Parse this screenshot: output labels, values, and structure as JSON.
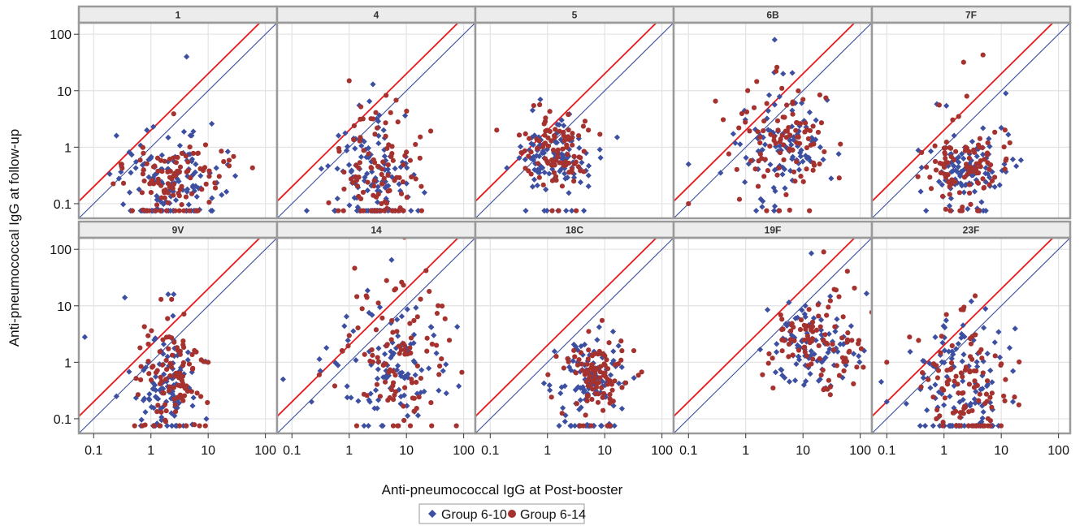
{
  "chart_data": {
    "type": "scatter",
    "layout": "panel-grid",
    "rows": 2,
    "cols": 5,
    "xscale": "log",
    "yscale": "log",
    "xlim": [
      0.055,
      160
    ],
    "ylim": [
      0.055,
      160
    ],
    "xlabel": "Anti-pneumococcal IgG at Post-booster",
    "ylabel": "Anti-pneumococcal IgG at follow-up",
    "x_ticks": [
      0.1,
      1,
      10,
      100
    ],
    "x_tick_labels": [
      "0.1",
      "1",
      "10",
      "100"
    ],
    "y_ticks": [
      0.1,
      1,
      10,
      100
    ],
    "y_tick_labels": [
      "0.1",
      "1",
      "10",
      "100"
    ],
    "grid": true,
    "legend_position": "bottom",
    "reference_lines": [
      {
        "kind": "identity",
        "factor": 1,
        "color": "#3d4fa0"
      },
      {
        "kind": "two-fold",
        "factor": 2,
        "color": "#e8191c"
      }
    ],
    "series": [
      {
        "name": "Group 6-10",
        "color": "#3d4fa0",
        "marker": "diamond"
      },
      {
        "name": "Group 6-14",
        "color": "#a5322e",
        "marker": "circle"
      }
    ],
    "panels": [
      {
        "label": "1",
        "lloq": 0.075,
        "g1": {
          "cx": 2,
          "cy": 0.3,
          "sx": 0.45,
          "sy": 0.35,
          "floor": 25,
          "n": 95,
          "extra": [
            [
              4.2,
              40
            ],
            [
              1.1,
              2.3
            ],
            [
              0.85,
              2
            ],
            [
              0.25,
              1.6
            ],
            [
              5.5,
              1.9
            ],
            [
              0.55,
              0.55
            ]
          ]
        },
        "g2": {
          "cx": 2.4,
          "cy": 0.28,
          "sx": 0.45,
          "sy": 0.3,
          "floor": 10,
          "n": 95,
          "extra": [
            [
              2.5,
              3.9
            ],
            [
              17,
              0.85
            ],
            [
              9,
              1.1
            ],
            [
              0.3,
              0.5
            ]
          ]
        }
      },
      {
        "label": "4",
        "lloq": 0.075,
        "g1": {
          "cx": 2.5,
          "cy": 0.3,
          "sx": 0.35,
          "sy": 0.45,
          "floor": 25,
          "n": 95,
          "extra": [
            [
              2.6,
              13
            ],
            [
              1.5,
              5.5
            ],
            [
              0.65,
              1.6
            ],
            [
              1.3,
              1.4
            ],
            [
              4,
              2
            ]
          ]
        },
        "g2": {
          "cx": 3.2,
          "cy": 0.35,
          "sx": 0.35,
          "sy": 0.5,
          "floor": 10,
          "n": 95,
          "extra": [
            [
              1,
              15
            ],
            [
              1.6,
              5.2
            ],
            [
              6.6,
              6.8
            ],
            [
              2.4,
              3.2
            ]
          ]
        }
      },
      {
        "label": "5",
        "lloq": 0.075,
        "g1": {
          "cx": 1.4,
          "cy": 0.7,
          "sx": 0.35,
          "sy": 0.3,
          "floor": 6,
          "n": 95,
          "extra": [
            [
              0.75,
              7
            ],
            [
              0.55,
              4.5
            ],
            [
              0.55,
              0.2
            ],
            [
              1.6,
              2.5
            ]
          ]
        },
        "g2": {
          "cx": 1.5,
          "cy": 0.8,
          "sx": 0.35,
          "sy": 0.3,
          "floor": 3,
          "n": 95,
          "extra": [
            [
              1.1,
              4.3
            ],
            [
              2.3,
              3.8
            ],
            [
              3.5,
              1.6
            ],
            [
              0.35,
              0.8
            ]
          ]
        }
      },
      {
        "label": "6B",
        "lloq": 0.075,
        "g1": {
          "cx": 4.5,
          "cy": 1,
          "sx": 0.4,
          "sy": 0.45,
          "floor": 3,
          "n": 95,
          "extra": [
            [
              3.2,
              80
            ],
            [
              4.5,
              20
            ],
            [
              0.1,
              0.5
            ],
            [
              20,
              1
            ]
          ]
        },
        "g2": {
          "cx": 4.5,
          "cy": 1.2,
          "sx": 0.4,
          "sy": 0.45,
          "floor": 3,
          "n": 95,
          "extra": [
            [
              3.5,
              26
            ],
            [
              1.4,
              5
            ],
            [
              0.1,
              0.1
            ],
            [
              10,
              7
            ]
          ]
        }
      },
      {
        "label": "7F",
        "lloq": 0.075,
        "g1": {
          "cx": 2.4,
          "cy": 0.38,
          "sx": 0.35,
          "sy": 0.3,
          "floor": 5,
          "n": 95,
          "extra": [
            [
              0.75,
              5.8
            ],
            [
              1.1,
              5.4
            ],
            [
              12,
              9
            ],
            [
              10,
              2.2
            ],
            [
              1.5,
              1.6
            ]
          ]
        },
        "g2": {
          "cx": 2.5,
          "cy": 0.42,
          "sx": 0.35,
          "sy": 0.3,
          "floor": 4,
          "n": 95,
          "extra": [
            [
              4.8,
              43
            ],
            [
              2.2,
              32
            ],
            [
              2.5,
              8
            ],
            [
              1.8,
              3.5
            ],
            [
              0.35,
              0.3
            ]
          ]
        }
      },
      {
        "label": "9V",
        "lloq": 0.075,
        "g1": {
          "cx": 2,
          "cy": 0.45,
          "sx": 0.3,
          "sy": 0.4,
          "floor": 10,
          "n": 95,
          "extra": [
            [
              0.07,
              2.8
            ],
            [
              0.35,
              14
            ],
            [
              2.5,
              16
            ],
            [
              2,
              16
            ],
            [
              0.25,
              0.25
            ]
          ]
        },
        "g2": {
          "cx": 2.4,
          "cy": 0.5,
          "sx": 0.3,
          "sy": 0.42,
          "floor": 8,
          "n": 95,
          "extra": [
            [
              2.3,
              13
            ],
            [
              1.5,
              13
            ],
            [
              10,
              1
            ],
            [
              0.9,
              2.1
            ]
          ]
        }
      },
      {
        "label": "14",
        "lloq": 0.075,
        "g1": {
          "cx": 5.5,
          "cy": 0.9,
          "sx": 0.5,
          "sy": 0.55,
          "floor": 4,
          "n": 95,
          "extra": [
            [
              0.07,
              0.5
            ],
            [
              5.5,
              65
            ],
            [
              0.22,
              0.2
            ],
            [
              30,
              3
            ],
            [
              0.4,
              1.8
            ]
          ]
        },
        "g2": {
          "cx": 6,
          "cy": 1.1,
          "sx": 0.5,
          "sy": 0.55,
          "floor": 4,
          "n": 95,
          "extra": [
            [
              22,
              42
            ],
            [
              4.5,
              28
            ],
            [
              6.5,
              20
            ],
            [
              0.3,
              0.6
            ],
            [
              25,
              18
            ]
          ]
        }
      },
      {
        "label": "18C",
        "lloq": 0.075,
        "g1": {
          "cx": 5.5,
          "cy": 0.5,
          "sx": 0.3,
          "sy": 0.32,
          "floor": 20,
          "n": 95,
          "extra": [
            [
              1.1,
              0.32
            ],
            [
              14,
              3.5
            ],
            [
              8,
              4.2
            ]
          ]
        },
        "g2": {
          "cx": 6.5,
          "cy": 0.6,
          "sx": 0.3,
          "sy": 0.32,
          "floor": 5,
          "n": 95,
          "extra": [
            [
              9,
              5.5
            ],
            [
              20,
              1.6
            ],
            [
              5,
              0.25
            ]
          ]
        }
      },
      {
        "label": "19F",
        "lloq": 0.075,
        "g1": {
          "cx": 16,
          "cy": 1.8,
          "sx": 0.38,
          "sy": 0.4,
          "floor": 0,
          "n": 95,
          "extra": [
            [
              2.4,
              8.5
            ],
            [
              14,
              85
            ],
            [
              11,
              10
            ],
            [
              5,
              2.5
            ]
          ]
        },
        "g2": {
          "cx": 20,
          "cy": 2.2,
          "sx": 0.38,
          "sy": 0.4,
          "floor": 0,
          "n": 95,
          "extra": [
            [
              23,
              90
            ],
            [
              9,
              3.8
            ],
            [
              3,
              0.35
            ],
            [
              60,
              2.5
            ]
          ]
        }
      },
      {
        "label": "23F",
        "lloq": 0.075,
        "g1": {
          "cx": 2,
          "cy": 0.45,
          "sx": 0.4,
          "sy": 0.5,
          "floor": 25,
          "n": 95,
          "extra": [
            [
              0.08,
              0.45
            ],
            [
              3,
              12
            ],
            [
              14,
              1.8
            ],
            [
              16,
              0.2
            ],
            [
              0.1,
              0.2
            ]
          ]
        },
        "g2": {
          "cx": 2.5,
          "cy": 0.5,
          "sx": 0.4,
          "sy": 0.5,
          "floor": 8,
          "n": 95,
          "extra": [
            [
              3.5,
              15
            ],
            [
              0.25,
              2.8
            ],
            [
              1.1,
              7
            ],
            [
              0.1,
              1
            ]
          ]
        }
      }
    ]
  }
}
